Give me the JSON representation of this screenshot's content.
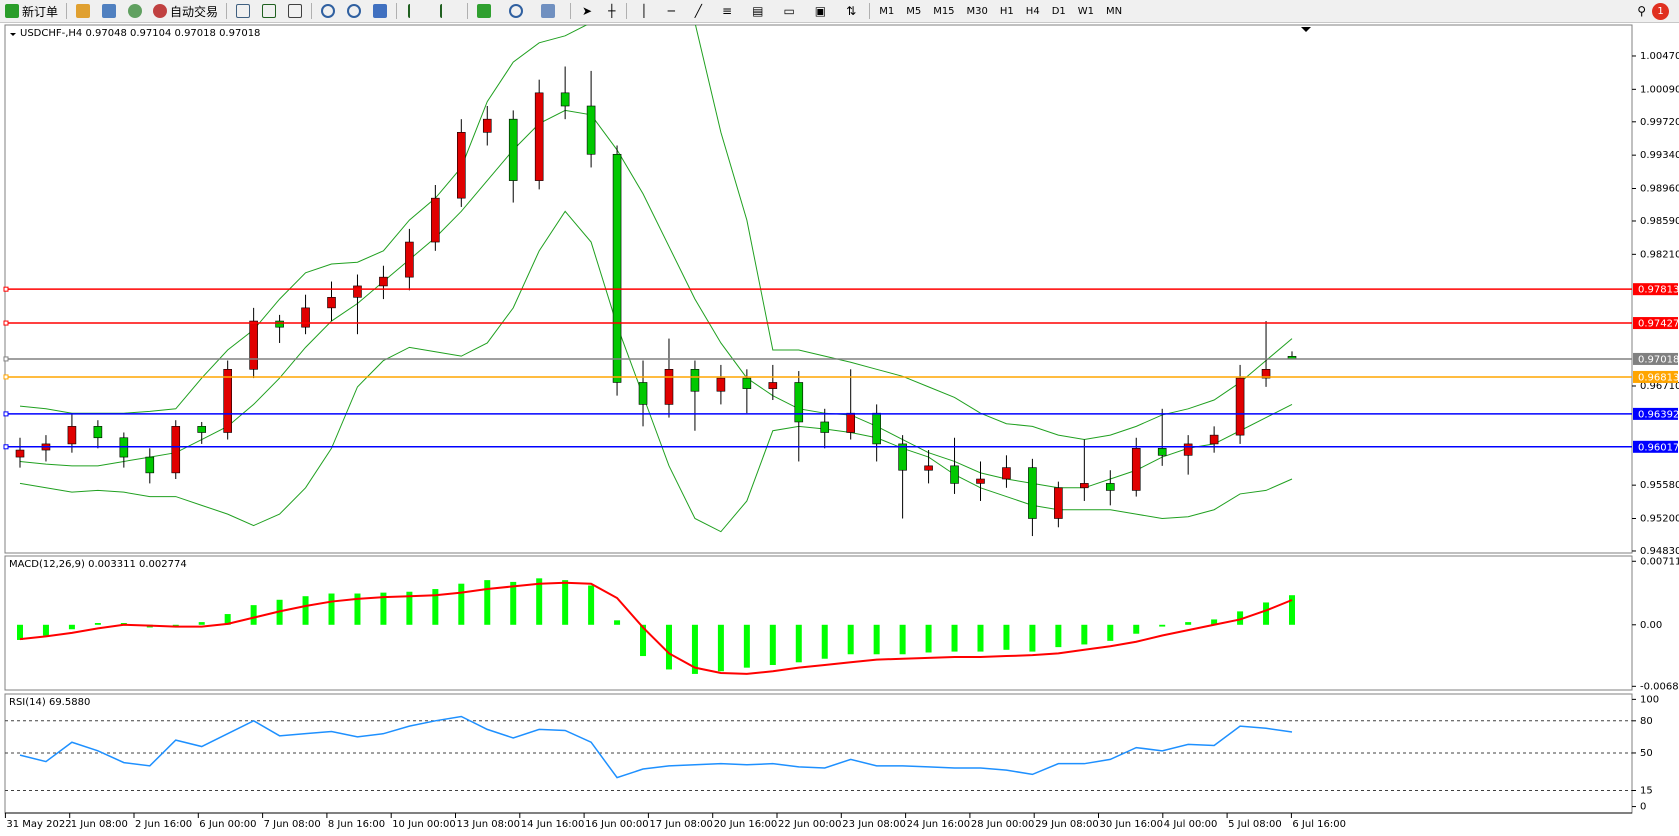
{
  "toolbar": {
    "new_order": "新订单",
    "auto_trade": "自动交易",
    "timeframes": [
      "M1",
      "M5",
      "M15",
      "M30",
      "H1",
      "H4",
      "D1",
      "W1",
      "MN"
    ],
    "notification": "1"
  },
  "chart_data": {
    "type": "candlestick",
    "title": "USDCHF-,H4  0.97048 0.97104 0.97018 0.97018",
    "up_color": "#e00000",
    "down_color": "#00c800",
    "ylim": [
      0.94807,
      1.00823
    ],
    "yticks": [
      {
        "value": 1.0047,
        "label": "1.00470"
      },
      {
        "value": 1.0009,
        "label": "1.00090"
      },
      {
        "value": 0.9972,
        "label": "0.99720"
      },
      {
        "value": 0.9934,
        "label": "0.99340"
      },
      {
        "value": 0.9896,
        "label": "0.98960"
      },
      {
        "value": 0.9859,
        "label": "0.98590"
      },
      {
        "value": 0.9821,
        "label": "0.98210"
      },
      {
        "value": 0.9671,
        "label": "0.96710"
      },
      {
        "value": 0.9558,
        "label": "0.95580"
      },
      {
        "value": 0.952,
        "label": "0.95200"
      },
      {
        "value": 0.9483,
        "label": "0.94830"
      }
    ],
    "categories": [
      "31 May 2022",
      "1 Jun 08:00",
      "2 Jun 16:00",
      "6 Jun 00:00",
      "7 Jun 08:00",
      "8 Jun 16:00",
      "10 Jun 00:00",
      "13 Jun 08:00",
      "14 Jun 16:00",
      "16 Jun 00:00",
      "17 Jun 08:00",
      "20 Jun 16:00",
      "22 Jun 00:00",
      "23 Jun 08:00",
      "24 Jun 16:00",
      "28 Jun 00:00",
      "29 Jun 08:00",
      "30 Jun 16:00",
      "4 Jul 00:00",
      "5 Jul 08:00",
      "6 Jul 16:00"
    ],
    "open": [
      0.959,
      0.9598,
      0.9605,
      0.9625,
      0.9612,
      0.959,
      0.9572,
      0.9625,
      0.9618,
      0.969,
      0.9745,
      0.9738,
      0.976,
      0.9772,
      0.9785,
      0.9795,
      0.9835,
      0.9885,
      0.996,
      0.9975,
      0.9905,
      1.0005,
      0.999,
      0.9935,
      0.9675,
      0.965,
      0.969,
      0.9665,
      0.968,
      0.9668,
      0.9675,
      0.963,
      0.9618,
      0.964,
      0.9605,
      0.9575,
      0.958,
      0.956,
      0.9565,
      0.9578,
      0.952,
      0.9555,
      0.956,
      0.9552,
      0.96,
      0.9592,
      0.9605,
      0.9615,
      0.968,
      0.97048
    ],
    "high": [
      0.9612,
      0.9615,
      0.964,
      0.9632,
      0.9618,
      0.96,
      0.9632,
      0.963,
      0.97,
      0.976,
      0.9752,
      0.9775,
      0.979,
      0.9798,
      0.9808,
      0.985,
      0.99,
      0.9975,
      0.999,
      0.9985,
      1.002,
      1.0035,
      1.003,
      0.9945,
      0.97,
      0.9725,
      0.97,
      0.9695,
      0.969,
      0.9695,
      0.9688,
      0.9645,
      0.969,
      0.965,
      0.9615,
      0.9598,
      0.9612,
      0.9585,
      0.9592,
      0.9588,
      0.9562,
      0.961,
      0.9575,
      0.9612,
      0.9645,
      0.9615,
      0.9625,
      0.9695,
      0.9745,
      0.97104
    ],
    "low": [
      0.9578,
      0.9585,
      0.9595,
      0.96,
      0.9578,
      0.956,
      0.9565,
      0.9605,
      0.961,
      0.968,
      0.972,
      0.973,
      0.9745,
      0.973,
      0.977,
      0.978,
      0.9825,
      0.9875,
      0.9945,
      0.988,
      0.9895,
      0.9975,
      0.992,
      0.966,
      0.9625,
      0.9635,
      0.962,
      0.965,
      0.964,
      0.9655,
      0.9585,
      0.96,
      0.961,
      0.9585,
      0.952,
      0.956,
      0.9548,
      0.954,
      0.9555,
      0.95,
      0.951,
      0.954,
      0.9535,
      0.9545,
      0.958,
      0.957,
      0.9595,
      0.9605,
      0.967,
      0.97018
    ],
    "close": [
      0.9598,
      0.9605,
      0.9625,
      0.9612,
      0.959,
      0.9572,
      0.9625,
      0.9618,
      0.969,
      0.9745,
      0.9738,
      0.976,
      0.9772,
      0.9785,
      0.9795,
      0.9835,
      0.9885,
      0.996,
      0.9975,
      0.9905,
      1.0005,
      0.999,
      0.9935,
      0.9675,
      0.965,
      0.969,
      0.9665,
      0.968,
      0.9668,
      0.9675,
      0.963,
      0.9618,
      0.964,
      0.9605,
      0.9575,
      0.958,
      0.956,
      0.9565,
      0.9578,
      0.952,
      0.9555,
      0.956,
      0.9552,
      0.96,
      0.9592,
      0.9605,
      0.9615,
      0.968,
      0.969,
      0.97018
    ],
    "bands": {
      "color": "#20a020",
      "upper": [
        0.9648,
        0.9645,
        0.964,
        0.964,
        0.964,
        0.9642,
        0.9645,
        0.968,
        0.9712,
        0.9735,
        0.977,
        0.98,
        0.981,
        0.9812,
        0.9825,
        0.986,
        0.9885,
        0.992,
        0.9995,
        1.004,
        1.0062,
        1.007,
        1.0085,
        1.011,
        1.011,
        1.011,
        1.0085,
        0.996,
        0.986,
        0.9712,
        0.9712,
        0.9705,
        0.9698,
        0.969,
        0.9682,
        0.967,
        0.9658,
        0.964,
        0.9628,
        0.9625,
        0.9615,
        0.961,
        0.9615,
        0.9625,
        0.9638,
        0.9645,
        0.9655,
        0.9675,
        0.97,
        0.9725
      ],
      "middle": [
        0.9585,
        0.9582,
        0.958,
        0.958,
        0.9585,
        0.959,
        0.9595,
        0.961,
        0.9625,
        0.965,
        0.968,
        0.9715,
        0.9745,
        0.9765,
        0.979,
        0.9815,
        0.984,
        0.987,
        0.9905,
        0.994,
        0.997,
        0.9985,
        0.998,
        0.994,
        0.989,
        0.983,
        0.977,
        0.972,
        0.968,
        0.966,
        0.9645,
        0.964,
        0.9638,
        0.9625,
        0.961,
        0.9595,
        0.9585,
        0.9572,
        0.9565,
        0.956,
        0.9555,
        0.9555,
        0.9565,
        0.9575,
        0.959,
        0.96,
        0.9605,
        0.962,
        0.9635,
        0.965
      ],
      "lower": [
        0.956,
        0.9555,
        0.955,
        0.9552,
        0.955,
        0.9545,
        0.9545,
        0.9535,
        0.9525,
        0.9512,
        0.9525,
        0.9555,
        0.96,
        0.967,
        0.97,
        0.9715,
        0.971,
        0.9705,
        0.972,
        0.976,
        0.9825,
        0.987,
        0.9835,
        0.974,
        0.966,
        0.958,
        0.952,
        0.9505,
        0.954,
        0.962,
        0.9625,
        0.9622,
        0.9618,
        0.9612,
        0.96,
        0.959,
        0.957,
        0.9555,
        0.9545,
        0.9535,
        0.953,
        0.953,
        0.953,
        0.9525,
        0.952,
        0.9522,
        0.953,
        0.9548,
        0.9552,
        0.9565
      ]
    },
    "levels": [
      {
        "value": 0.97813,
        "color": "#ff0000"
      },
      {
        "value": 0.97427,
        "color": "#ff0000"
      },
      {
        "value": 0.97018,
        "color": "#808080"
      },
      {
        "value": 0.96813,
        "color": "#ffa500"
      },
      {
        "value": 0.96392,
        "color": "#0000ff"
      },
      {
        "value": 0.96017,
        "color": "#0000ff"
      }
    ],
    "macd": {
      "title": "MACD(12,26,9) 0.003311 0.002774",
      "ylim": [
        -0.0073,
        0.0077
      ],
      "yticks": [
        0.00711,
        {
          "value": 0,
          "label": "0.00"
        },
        -0.006888
      ],
      "hist_color": "#00ff00",
      "signal_color": "#ff0000",
      "histogram": [
        -0.0017,
        -0.0012,
        -0.0005,
        0.0002,
        0.0002,
        -0.0003,
        -0.0003,
        0.0003,
        0.0012,
        0.0022,
        0.0028,
        0.0032,
        0.0035,
        0.0035,
        0.0036,
        0.0037,
        0.004,
        0.0046,
        0.005,
        0.0048,
        0.0052,
        0.005,
        0.0044,
        0.0005,
        -0.0035,
        -0.005,
        -0.0055,
        -0.0052,
        -0.0048,
        -0.0045,
        -0.0042,
        -0.0038,
        -0.0033,
        -0.0033,
        -0.0033,
        -0.0031,
        -0.003,
        -0.003,
        -0.0028,
        -0.003,
        -0.0025,
        -0.0022,
        -0.0018,
        -0.001,
        -0.0002,
        0.0003,
        0.0006,
        0.0015,
        0.0025,
        0.003311
      ],
      "signal": [
        -0.0016,
        -0.0013,
        -0.0009,
        -0.0004,
        0,
        -0.0001,
        -0.0002,
        -0.0002,
        0.0001,
        0.0008,
        0.0015,
        0.0021,
        0.0026,
        0.0029,
        0.0031,
        0.0032,
        0.0033,
        0.0036,
        0.004,
        0.0043,
        0.0046,
        0.0047,
        0.0046,
        0.003,
        -0.0003,
        -0.0032,
        -0.0048,
        -0.0054,
        -0.0055,
        -0.0052,
        -0.0048,
        -0.0045,
        -0.0042,
        -0.0039,
        -0.0038,
        -0.0037,
        -0.0036,
        -0.0036,
        -0.0035,
        -0.0034,
        -0.0032,
        -0.0028,
        -0.0024,
        -0.0019,
        -0.0012,
        -0.0006,
        0,
        0.0006,
        0.0016,
        0.002774
      ]
    },
    "rsi": {
      "title": "RSI(14) 69.5880",
      "ylim": [
        -6,
        105
      ],
      "yticks": [
        100,
        80,
        50,
        15,
        0
      ],
      "levels": [
        80,
        50,
        15
      ],
      "color": "#1e90ff",
      "values": [
        48,
        42,
        60,
        52,
        41,
        38,
        62,
        56,
        68,
        80,
        66,
        68,
        70,
        65,
        68,
        75,
        80,
        84,
        72,
        64,
        72,
        71,
        60,
        27,
        35,
        38,
        39,
        40,
        39,
        40,
        37,
        36,
        44,
        38,
        38,
        37,
        36,
        36,
        34,
        30,
        40,
        40,
        44,
        55,
        52,
        58,
        57,
        75,
        73,
        69.588
      ]
    }
  }
}
